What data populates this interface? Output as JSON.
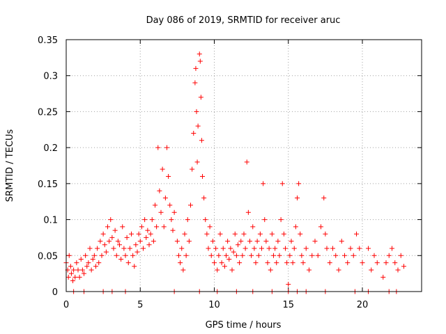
{
  "chart_data": {
    "type": "scatter",
    "title": "Day 086 of 2019, SRMTID for receiver aruc",
    "xlabel": "GPS time / hours",
    "ylabel": "SRMTID / TECUs",
    "xlim": [
      0,
      24
    ],
    "ylim": [
      0,
      0.35
    ],
    "xticks": [
      0,
      5,
      10,
      15,
      20
    ],
    "xtick_labels": [
      "0",
      "5",
      "10",
      "15",
      "20"
    ],
    "yticks": [
      0,
      0.05,
      0.1,
      0.15,
      0.2,
      0.25,
      0.3,
      0.35
    ],
    "ytick_labels": [
      "0",
      "0.05",
      "0.1",
      "0.15",
      "0.2",
      "0.25",
      "0.3",
      "0.35"
    ],
    "grid": true,
    "marker": "+",
    "color": "#ff0000",
    "series": [
      {
        "name": "SRMTID",
        "points": [
          [
            0.0,
            0.04
          ],
          [
            0.1,
            0.03
          ],
          [
            0.15,
            0.02
          ],
          [
            0.2,
            0.05
          ],
          [
            0.3,
            0.035
          ],
          [
            0.35,
            0.025
          ],
          [
            0.45,
            0.015
          ],
          [
            0.5,
            0.03
          ],
          [
            0.6,
            0.02
          ],
          [
            0.7,
            0.04
          ],
          [
            0.8,
            0.03
          ],
          [
            0.9,
            0.02
          ],
          [
            1.0,
            0.045
          ],
          [
            1.1,
            0.03
          ],
          [
            1.2,
            0.025
          ],
          [
            1.3,
            0.05
          ],
          [
            1.4,
            0.035
          ],
          [
            1.5,
            0.04
          ],
          [
            1.6,
            0.06
          ],
          [
            1.7,
            0.03
          ],
          [
            1.8,
            0.045
          ],
          [
            1.9,
            0.05
          ],
          [
            2.0,
            0.035
          ],
          [
            2.1,
            0.06
          ],
          [
            2.2,
            0.04
          ],
          [
            2.3,
            0.07
          ],
          [
            2.4,
            0.05
          ],
          [
            2.5,
            0.08
          ],
          [
            2.6,
            0.065
          ],
          [
            2.7,
            0.055
          ],
          [
            2.8,
            0.09
          ],
          [
            2.9,
            0.07
          ],
          [
            3.0,
            0.1
          ],
          [
            3.1,
            0.075
          ],
          [
            3.2,
            0.06
          ],
          [
            3.3,
            0.085
          ],
          [
            3.4,
            0.05
          ],
          [
            3.5,
            0.07
          ],
          [
            3.6,
            0.065
          ],
          [
            3.7,
            0.045
          ],
          [
            3.8,
            0.09
          ],
          [
            3.9,
            0.06
          ],
          [
            4.0,
            0.05
          ],
          [
            4.1,
            0.075
          ],
          [
            4.2,
            0.04
          ],
          [
            4.3,
            0.06
          ],
          [
            4.4,
            0.08
          ],
          [
            4.5,
            0.05
          ],
          [
            4.6,
            0.035
          ],
          [
            4.7,
            0.065
          ],
          [
            4.8,
            0.055
          ],
          [
            4.9,
            0.08
          ],
          [
            5.0,
            0.07
          ],
          [
            5.1,
            0.09
          ],
          [
            5.2,
            0.06
          ],
          [
            5.3,
            0.1
          ],
          [
            5.4,
            0.075
          ],
          [
            5.5,
            0.085
          ],
          [
            5.6,
            0.065
          ],
          [
            5.7,
            0.08
          ],
          [
            5.8,
            0.1
          ],
          [
            5.9,
            0.07
          ],
          [
            6.0,
            0.12
          ],
          [
            6.1,
            0.09
          ],
          [
            6.2,
            0.2
          ],
          [
            6.3,
            0.14
          ],
          [
            6.4,
            0.11
          ],
          [
            6.5,
            0.17
          ],
          [
            6.6,
            0.09
          ],
          [
            6.7,
            0.13
          ],
          [
            6.8,
            0.2
          ],
          [
            6.9,
            0.16
          ],
          [
            7.0,
            0.12
          ],
          [
            7.1,
            0.1
          ],
          [
            7.2,
            0.085
          ],
          [
            7.3,
            0.11
          ],
          [
            7.5,
            0.07
          ],
          [
            7.6,
            0.05
          ],
          [
            7.7,
            0.04
          ],
          [
            7.8,
            0.06
          ],
          [
            7.9,
            0.03
          ],
          [
            8.0,
            0.08
          ],
          [
            8.1,
            0.05
          ],
          [
            8.2,
            0.1
          ],
          [
            8.3,
            0.07
          ],
          [
            8.4,
            0.12
          ],
          [
            8.5,
            0.17
          ],
          [
            8.6,
            0.22
          ],
          [
            8.7,
            0.29
          ],
          [
            8.75,
            0.31
          ],
          [
            8.8,
            0.25
          ],
          [
            8.85,
            0.18
          ],
          [
            8.9,
            0.23
          ],
          [
            9.0,
            0.33
          ],
          [
            9.05,
            0.32
          ],
          [
            9.1,
            0.27
          ],
          [
            9.15,
            0.21
          ],
          [
            9.2,
            0.16
          ],
          [
            9.3,
            0.13
          ],
          [
            9.4,
            0.1
          ],
          [
            9.5,
            0.08
          ],
          [
            9.6,
            0.06
          ],
          [
            9.7,
            0.09
          ],
          [
            9.8,
            0.05
          ],
          [
            9.9,
            0.07
          ],
          [
            10.0,
            0.04
          ],
          [
            10.1,
            0.06
          ],
          [
            10.2,
            0.03
          ],
          [
            10.3,
            0.05
          ],
          [
            10.4,
            0.08
          ],
          [
            10.5,
            0.04
          ],
          [
            10.6,
            0.06
          ],
          [
            10.7,
            0.035
          ],
          [
            10.8,
            0.05
          ],
          [
            10.9,
            0.07
          ],
          [
            11.0,
            0.045
          ],
          [
            11.1,
            0.06
          ],
          [
            11.2,
            0.03
          ],
          [
            11.3,
            0.055
          ],
          [
            11.4,
            0.08
          ],
          [
            11.5,
            0.05
          ],
          [
            11.6,
            0.065
          ],
          [
            11.7,
            0.04
          ],
          [
            11.8,
            0.07
          ],
          [
            11.9,
            0.05
          ],
          [
            12.0,
            0.08
          ],
          [
            12.1,
            0.06
          ],
          [
            12.2,
            0.18
          ],
          [
            12.3,
            0.11
          ],
          [
            12.4,
            0.07
          ],
          [
            12.5,
            0.05
          ],
          [
            12.6,
            0.09
          ],
          [
            12.7,
            0.06
          ],
          [
            12.8,
            0.04
          ],
          [
            12.9,
            0.07
          ],
          [
            13.0,
            0.05
          ],
          [
            13.1,
            0.08
          ],
          [
            13.2,
            0.06
          ],
          [
            13.3,
            0.15
          ],
          [
            13.4,
            0.1
          ],
          [
            13.5,
            0.07
          ],
          [
            13.6,
            0.04
          ],
          [
            13.7,
            0.06
          ],
          [
            13.8,
            0.03
          ],
          [
            13.9,
            0.08
          ],
          [
            14.0,
            0.05
          ],
          [
            14.1,
            0.06
          ],
          [
            14.2,
            0.04
          ],
          [
            14.3,
            0.07
          ],
          [
            14.4,
            0.05
          ],
          [
            14.5,
            0.1
          ],
          [
            14.6,
            0.15
          ],
          [
            14.7,
            0.08
          ],
          [
            14.8,
            0.06
          ],
          [
            14.9,
            0.04
          ],
          [
            15.0,
            0.01
          ],
          [
            15.1,
            0.05
          ],
          [
            15.2,
            0.07
          ],
          [
            15.3,
            0.04
          ],
          [
            15.4,
            0.06
          ],
          [
            15.5,
            0.09
          ],
          [
            15.6,
            0.13
          ],
          [
            15.7,
            0.15
          ],
          [
            15.8,
            0.08
          ],
          [
            15.9,
            0.05
          ],
          [
            16.0,
            0.04
          ],
          [
            16.2,
            0.06
          ],
          [
            16.4,
            0.03
          ],
          [
            16.6,
            0.05
          ],
          [
            16.8,
            0.07
          ],
          [
            17.0,
            0.05
          ],
          [
            17.2,
            0.09
          ],
          [
            17.4,
            0.13
          ],
          [
            17.5,
            0.08
          ],
          [
            17.6,
            0.06
          ],
          [
            17.8,
            0.04
          ],
          [
            18.0,
            0.06
          ],
          [
            18.2,
            0.05
          ],
          [
            18.4,
            0.03
          ],
          [
            18.6,
            0.07
          ],
          [
            18.8,
            0.05
          ],
          [
            19.0,
            0.04
          ],
          [
            19.2,
            0.06
          ],
          [
            19.4,
            0.05
          ],
          [
            19.6,
            0.08
          ],
          [
            19.8,
            0.06
          ],
          [
            20.0,
            0.04
          ],
          [
            20.4,
            0.06
          ],
          [
            20.6,
            0.03
          ],
          [
            20.8,
            0.05
          ],
          [
            21.0,
            0.04
          ],
          [
            21.4,
            0.02
          ],
          [
            21.6,
            0.04
          ],
          [
            21.8,
            0.05
          ],
          [
            22.0,
            0.06
          ],
          [
            22.2,
            0.04
          ],
          [
            22.4,
            0.03
          ],
          [
            22.6,
            0.05
          ],
          [
            22.8,
            0.035
          ],
          [
            0.5,
            0.0
          ],
          [
            1.2,
            0.0
          ],
          [
            2.5,
            0.0
          ],
          [
            3.1,
            0.0
          ],
          [
            4.0,
            0.0
          ],
          [
            7.3,
            0.0
          ],
          [
            9.0,
            0.0
          ],
          [
            10.2,
            0.0
          ],
          [
            11.5,
            0.0
          ],
          [
            12.6,
            0.0
          ],
          [
            13.9,
            0.0
          ],
          [
            15.0,
            0.0
          ],
          [
            15.6,
            0.0
          ],
          [
            16.2,
            0.0
          ],
          [
            17.5,
            0.0
          ],
          [
            19.5,
            0.0
          ],
          [
            20.4,
            0.0
          ],
          [
            21.8,
            0.0
          ],
          [
            22.3,
            0.0
          ]
        ]
      }
    ]
  }
}
